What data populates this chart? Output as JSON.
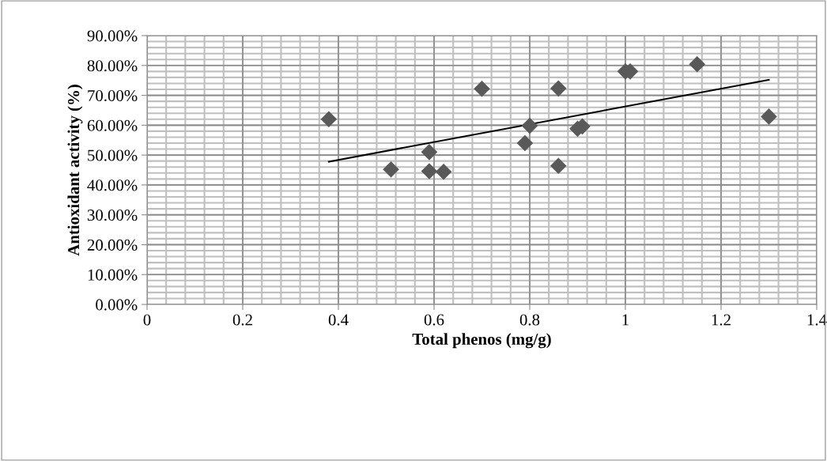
{
  "chart_data": {
    "type": "scatter",
    "xlabel": "Total phenos (mg/g)",
    "ylabel": "Antioxidant activity (%)",
    "marker": "diamond",
    "grid": true,
    "xlim": [
      0,
      1.4
    ],
    "xticks": [
      0,
      0.2,
      0.4,
      0.6,
      0.8,
      1,
      1.2,
      1.4
    ],
    "ylim": [
      0,
      90
    ],
    "yticks": [
      {
        "value": 0,
        "label": "0.00%"
      },
      {
        "value": 10,
        "label": "10.00%"
      },
      {
        "value": 20,
        "label": "20.00%"
      },
      {
        "value": 30,
        "label": "30.00%"
      },
      {
        "value": 40,
        "label": "40.00%"
      },
      {
        "value": 50,
        "label": "50.00%"
      },
      {
        "value": 60,
        "label": "60.00%"
      },
      {
        "value": 70,
        "label": "70.00%"
      },
      {
        "value": 80,
        "label": "80.00%"
      },
      {
        "value": 90,
        "label": "90.00%"
      }
    ],
    "series": [
      {
        "color": "#595959",
        "x": [
          0.38,
          0.51,
          0.59,
          0.59,
          0.62,
          0.7,
          0.79,
          0.8,
          0.86,
          0.86,
          0.9,
          0.91,
          1.0,
          1.01,
          1.15,
          1.3
        ],
        "values": [
          62.0,
          45.2,
          51.0,
          44.6,
          44.4,
          72.2,
          54.0,
          59.8,
          72.3,
          46.4,
          58.8,
          59.6,
          78.0,
          78.0,
          80.4,
          62.9
        ]
      },
      {
        "type": "line",
        "marker": "none",
        "color": "#000000",
        "x": [
          0.38,
          1.3
        ],
        "values": [
          47.8,
          75.2
        ]
      }
    ]
  }
}
